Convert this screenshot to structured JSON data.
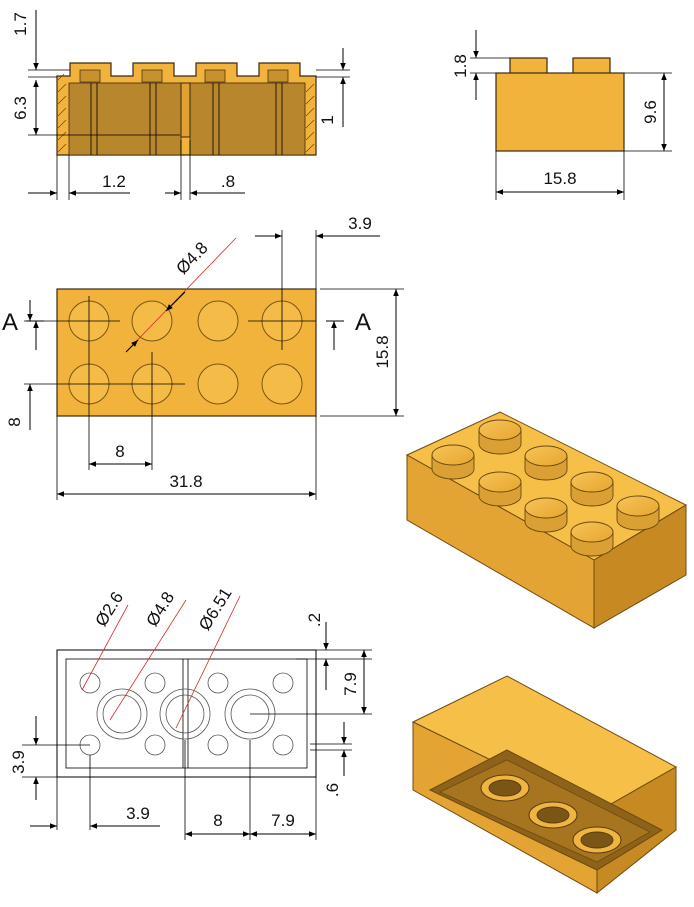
{
  "colors": {
    "brick": "#f2b33d",
    "brick_shade": "#c98a22",
    "brick_dark": "#9a6a1a",
    "line": "#000000"
  },
  "section_view": {
    "d1": "1.7",
    "d2": "6.3",
    "d3": "1",
    "d4": "1.2",
    "d5": ".8"
  },
  "side_view": {
    "d1": "1.8",
    "d2": "9.6",
    "d3": "15.8"
  },
  "top_view": {
    "dia": "Ø4.8",
    "d1": "3.9",
    "d2": "15.8",
    "d3": "8",
    "d4": "8",
    "d5": "31.8",
    "sec_left": "A",
    "sec_right": "A"
  },
  "bottom_view": {
    "dia1": "Ø2.6",
    "dia2": "Ø4.8",
    "dia3": "Ø6.51",
    "d1": ".2",
    "d2": "7.9",
    "d3": "3.9",
    "d4": ".6",
    "d5": "3.9",
    "d6": "8",
    "d7": "7.9"
  }
}
